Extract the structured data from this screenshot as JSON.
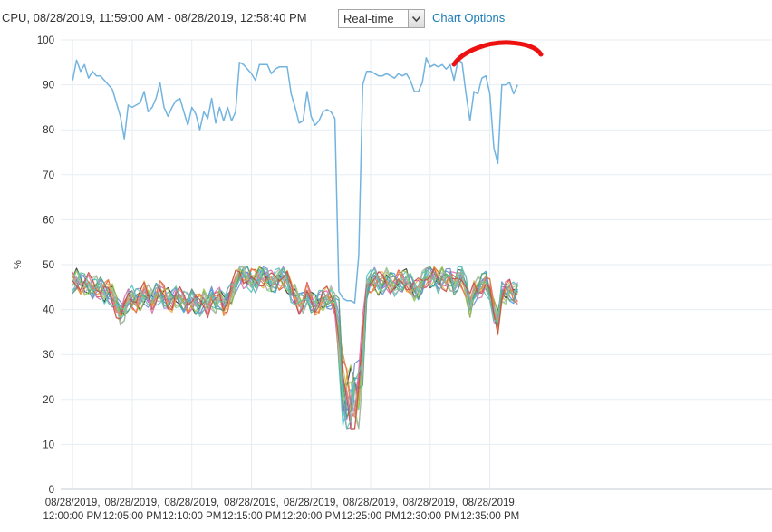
{
  "header": {
    "title": "CPU, 08/28/2019, 11:59:00 AM - 08/28/2019, 12:58:40 PM",
    "range_select_value": "Real-time",
    "chart_options_label": "Chart Options"
  },
  "colors": {
    "grid": "#e6edf2",
    "axis": "#c4ccd4",
    "link": "#1a7bb9",
    "highlighted_series": "#72b4df",
    "annotation": "#ee1111",
    "palette": [
      "#333333",
      "#e05050",
      "#3aa0d8",
      "#8bd17c",
      "#f0b54a",
      "#9b7bd8",
      "#4cc3c3",
      "#d86aa8",
      "#6e8bd0",
      "#a0c850",
      "#e8853c",
      "#5a9e6f",
      "#b0b0b0",
      "#c44e4e",
      "#63c7a0"
    ]
  },
  "chart_data": {
    "type": "line",
    "title": "",
    "xlabel": "",
    "ylabel": "%",
    "ylim": [
      0,
      100
    ],
    "yticks": [
      0,
      10,
      20,
      30,
      40,
      50,
      60,
      70,
      80,
      90,
      100
    ],
    "xlim_minutes_after_noon": [
      -1,
      58.67
    ],
    "xticks": [
      {
        "label": [
          "08/28/2019,",
          "12:00:00 PM"
        ]
      },
      {
        "label": [
          "08/28/2019,",
          "12:05:00 PM"
        ]
      },
      {
        "label": [
          "08/28/2019,",
          "12:10:00 PM"
        ]
      },
      {
        "label": [
          "08/28/2019,",
          "12:15:00 PM"
        ]
      },
      {
        "label": [
          "08/28/2019,",
          "12:20:00 PM"
        ]
      },
      {
        "label": [
          "08/28/2019,",
          "12:25:00 PM"
        ]
      },
      {
        "label": [
          "08/28/2019,",
          "12:30:00 PM"
        ]
      },
      {
        "label": [
          "08/28/2019,",
          "12:35:00 PM"
        ]
      }
    ],
    "grid": true,
    "legend": "none",
    "annotation": "hand-drawn red arc above the dip in the top series, around 12:20–12:25 PM",
    "series_highlight": {
      "color": "#72b4df",
      "time_start": "12:00:00 PM",
      "interval_seconds": 20,
      "values": [
        91,
        95.5,
        93,
        94.5,
        91.5,
        93,
        92,
        92,
        91,
        90,
        89,
        86,
        83,
        78,
        85.5,
        85,
        85.5,
        86,
        88.5,
        84,
        85,
        87,
        90.5,
        85,
        83,
        85,
        86.5,
        87,
        84,
        81,
        85,
        83.5,
        80,
        84,
        82.5,
        87,
        81.5,
        85,
        82,
        85,
        82,
        84,
        95,
        94.5,
        93.5,
        92.5,
        91,
        94.5,
        94.5,
        94.5,
        92.5,
        93.5,
        94,
        94,
        94,
        88,
        85,
        81.5,
        82,
        88.5,
        83,
        81,
        82,
        84,
        84.5,
        84,
        82.5,
        44,
        42.5,
        42,
        42,
        41.5,
        52,
        90,
        93,
        93,
        92.5,
        92,
        92,
        92.5,
        92,
        91.5,
        92.5,
        92,
        92.5,
        91,
        88.5,
        88.5,
        90.5,
        96,
        94,
        94.5,
        94,
        94.5,
        93.5,
        94.5,
        91,
        95.5,
        95,
        88,
        82,
        88.5,
        88,
        91.5,
        92,
        88,
        76,
        72.5,
        90,
        90,
        90.5,
        88,
        90
      ]
    },
    "series_group": {
      "count": 15,
      "value_range_note": "mostly 38–49%, dropping to about 14–30% around 12:22–12:25 PM",
      "profile": [
        46,
        46.5,
        46,
        45.5,
        45.5,
        45,
        45,
        44.5,
        44,
        44,
        43,
        41,
        39,
        40,
        42.5,
        42.5,
        42,
        42.5,
        43.5,
        43,
        42,
        43,
        44,
        43,
        42,
        42,
        43,
        42.5,
        42,
        41.5,
        42,
        41.5,
        41,
        42,
        41,
        42.5,
        41.5,
        43,
        41,
        42,
        44,
        46,
        48,
        47.5,
        47,
        46.5,
        46.5,
        47.5,
        47.5,
        47,
        46,
        46.5,
        47,
        47,
        46.5,
        44,
        43,
        41.5,
        41.5,
        43.5,
        42,
        41,
        41.5,
        42.5,
        42.5,
        42.5,
        41.5,
        34,
        22,
        20,
        19,
        20,
        22,
        30,
        45,
        46.5,
        46.5,
        46,
        46,
        46.5,
        46,
        45.5,
        46,
        46.5,
        46.5,
        45.5,
        44.5,
        44.5,
        46,
        47.5,
        47,
        47.5,
        46.5,
        47,
        46.5,
        47,
        45.5,
        47,
        47.5,
        44.5,
        41,
        44,
        44.5,
        45.5,
        46,
        44,
        40,
        37,
        43.5,
        44,
        44.5,
        43.5,
        44
      ]
    }
  }
}
